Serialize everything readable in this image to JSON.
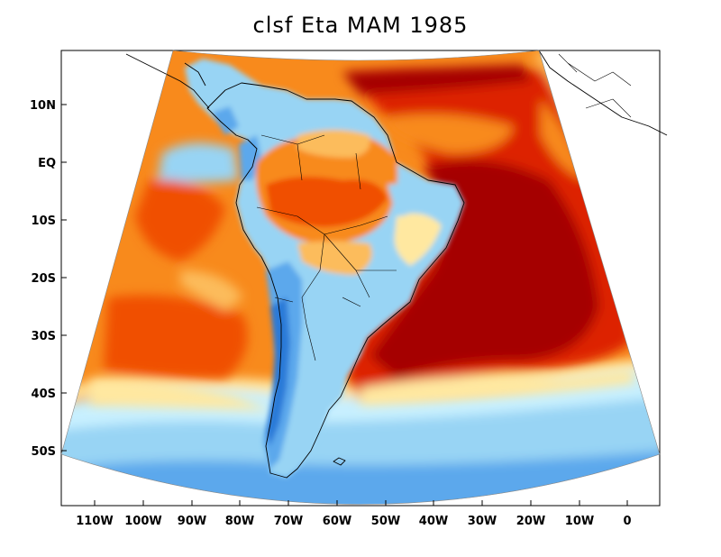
{
  "title": "clsf Eta MAM 1985",
  "axes": {
    "lat_labels": [
      "10N",
      "EQ",
      "10S",
      "20S",
      "30S",
      "40S",
      "50S"
    ],
    "lon_labels": [
      "110W",
      "100W",
      "90W",
      "80W",
      "70W",
      "60W",
      "50W",
      "40W",
      "30W",
      "20W",
      "10W",
      "0"
    ]
  },
  "colors": {
    "dark_red": "#a50000",
    "red": "#dd2000",
    "red_orange": "#f05000",
    "orange": "#f88a1c",
    "light_orange": "#fcbc5c",
    "pale_yellow": "#ffe8a0",
    "pale_cyan": "#c8f0ff",
    "light_blue": "#98d4f4",
    "mid_blue": "#5ca8ec",
    "dark_blue": "#2c7ad8",
    "land_outline": "#000000"
  }
}
